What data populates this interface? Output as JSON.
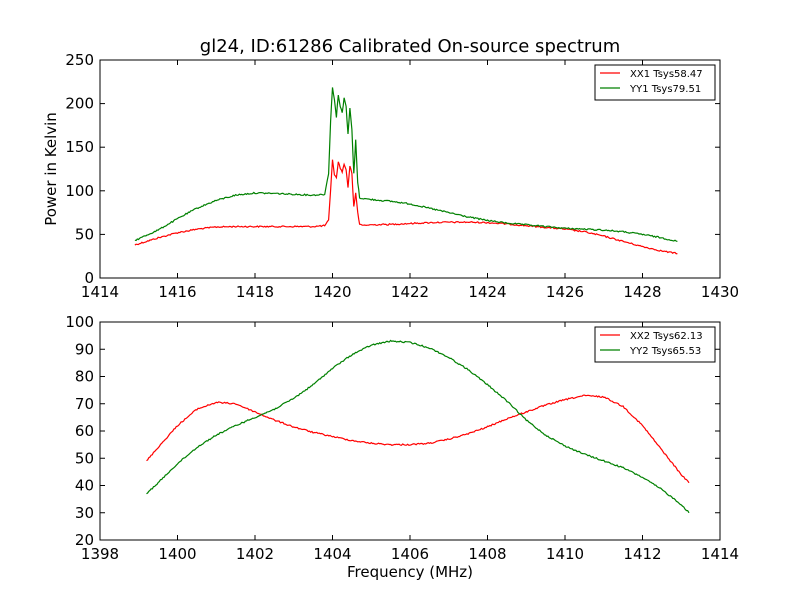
{
  "chart_data": [
    {
      "type": "line",
      "title": "gl24, ID:61286 Calibrated On-source spectrum",
      "xlabel": "",
      "ylabel": "Power in Kelvin",
      "xlim": [
        1414,
        1430
      ],
      "ylim": [
        0,
        250
      ],
      "xticks": [
        "1414",
        "1416",
        "1418",
        "1420",
        "1422",
        "1424",
        "1426",
        "1428",
        "1430"
      ],
      "yticks": [
        "0",
        "50",
        "100",
        "150",
        "200",
        "250"
      ],
      "grid": false,
      "legend_position": "top-right",
      "series": [
        {
          "name": "XX1 Tsys58.47",
          "color": "#ff0000",
          "x": [
            1414.9,
            1415.2,
            1415.5,
            1416.0,
            1416.5,
            1417.0,
            1417.5,
            1418.0,
            1418.5,
            1419.0,
            1419.5,
            1419.8,
            1419.9,
            1419.95,
            1420.0,
            1420.05,
            1420.1,
            1420.15,
            1420.2,
            1420.25,
            1420.3,
            1420.35,
            1420.4,
            1420.45,
            1420.5,
            1420.55,
            1420.6,
            1420.65,
            1420.7,
            1420.8,
            1421.0,
            1421.5,
            1422.0,
            1422.5,
            1423.0,
            1423.5,
            1424.0,
            1424.5,
            1425.0,
            1425.5,
            1426.0,
            1426.5,
            1427.0,
            1427.5,
            1428.0,
            1428.5,
            1428.9
          ],
          "y": [
            38,
            42,
            46,
            52,
            56,
            58.5,
            59,
            59,
            59,
            59,
            59,
            60,
            66,
            100,
            136,
            118,
            115,
            133,
            126,
            122,
            130,
            125,
            104,
            129,
            120,
            82,
            98,
            75,
            61,
            60.5,
            61,
            61.5,
            62.5,
            63.5,
            64,
            64,
            63.5,
            62,
            60,
            58,
            56,
            53,
            48,
            42,
            36,
            31,
            28
          ]
        },
        {
          "name": "YY1 Tsys79.51",
          "color": "#008000",
          "x": [
            1414.9,
            1415.5,
            1416.0,
            1416.5,
            1417.0,
            1417.5,
            1418.0,
            1418.5,
            1419.0,
            1419.5,
            1419.8,
            1419.9,
            1419.95,
            1420.0,
            1420.05,
            1420.1,
            1420.15,
            1420.2,
            1420.25,
            1420.3,
            1420.35,
            1420.4,
            1420.45,
            1420.5,
            1420.55,
            1420.6,
            1420.65,
            1420.7,
            1420.8,
            1421.0,
            1421.5,
            1422.0,
            1422.5,
            1423.0,
            1423.5,
            1424.0,
            1424.5,
            1425.0,
            1425.5,
            1426.0,
            1426.5,
            1427.0,
            1427.5,
            1428.0,
            1428.5,
            1428.9
          ],
          "y": [
            43,
            55,
            68,
            80,
            89,
            95,
            97.5,
            97,
            96,
            95,
            96,
            120,
            180,
            218,
            205,
            184,
            210,
            197,
            190,
            206,
            197,
            165,
            195,
            170,
            120,
            158,
            110,
            92,
            91,
            90,
            88,
            85,
            80,
            75,
            70,
            66,
            63,
            61,
            59,
            57,
            56,
            55,
            53,
            50,
            46,
            42
          ]
        }
      ]
    },
    {
      "type": "line",
      "title": "",
      "xlabel": "Frequency (MHz)",
      "ylabel": "",
      "xlim": [
        1398,
        1414
      ],
      "ylim": [
        20,
        100
      ],
      "xticks": [
        "1398",
        "1400",
        "1402",
        "1404",
        "1406",
        "1408",
        "1410",
        "1412",
        "1414"
      ],
      "yticks": [
        "20",
        "30",
        "40",
        "50",
        "60",
        "70",
        "80",
        "90",
        "100"
      ],
      "grid": false,
      "legend_position": "top-right",
      "series": [
        {
          "name": "XX2 Tsys62.13",
          "color": "#ff0000",
          "x": [
            1399.2,
            1399.5,
            1400.0,
            1400.5,
            1401.0,
            1401.5,
            1402.0,
            1402.5,
            1403.0,
            1403.5,
            1404.0,
            1404.5,
            1405.0,
            1405.5,
            1406.0,
            1406.5,
            1407.0,
            1407.5,
            1408.0,
            1408.5,
            1409.0,
            1409.5,
            1410.0,
            1410.5,
            1411.0,
            1411.5,
            1412.0,
            1412.5,
            1413.0,
            1413.2
          ],
          "y": [
            49,
            54,
            62,
            68,
            70.5,
            70,
            67,
            64,
            61.5,
            59.5,
            58,
            56.5,
            55.5,
            55,
            55,
            55.5,
            57,
            59,
            61.5,
            64.5,
            67,
            69.5,
            71.5,
            73,
            72.5,
            69,
            62,
            53,
            44,
            41
          ]
        },
        {
          "name": "YY2 Tsys65.53",
          "color": "#008000",
          "x": [
            1399.2,
            1399.5,
            1400.0,
            1400.5,
            1401.0,
            1401.5,
            1402.0,
            1402.5,
            1403.0,
            1403.5,
            1404.0,
            1404.5,
            1405.0,
            1405.5,
            1406.0,
            1406.5,
            1407.0,
            1407.5,
            1408.0,
            1408.5,
            1409.0,
            1409.5,
            1410.0,
            1410.5,
            1411.0,
            1411.5,
            1412.0,
            1412.5,
            1413.0,
            1413.2
          ],
          "y": [
            37,
            41,
            48,
            54,
            58.5,
            62,
            65,
            68,
            72,
            77,
            83,
            88,
            91.5,
            93,
            92.5,
            90.5,
            87,
            82.5,
            77,
            71,
            64,
            58.5,
            54.5,
            51.5,
            49,
            46.5,
            43,
            38.5,
            33,
            30
          ]
        }
      ]
    }
  ]
}
